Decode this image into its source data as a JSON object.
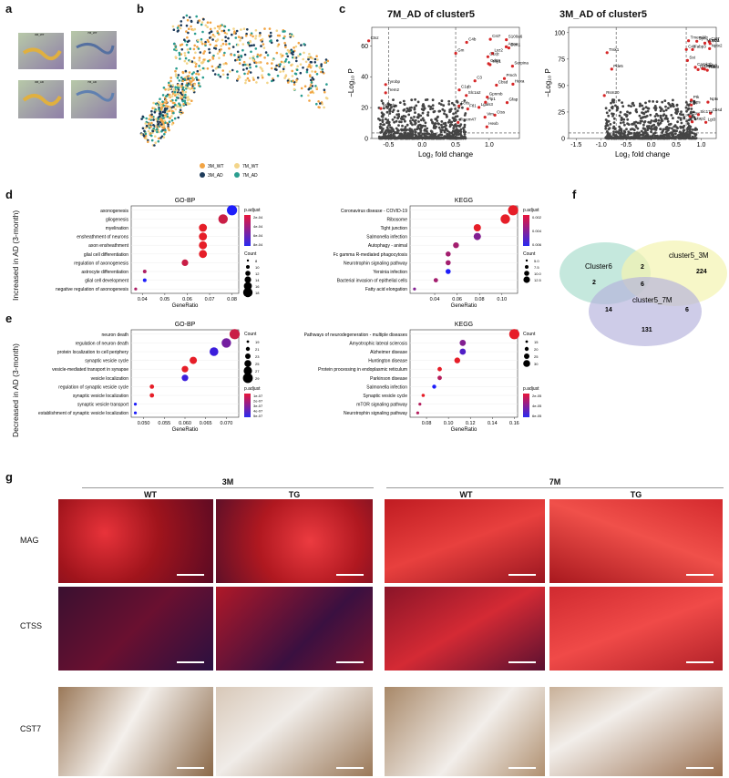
{
  "panel_labels": [
    "a",
    "b",
    "c",
    "d",
    "e",
    "f",
    "g"
  ],
  "panel_a": {
    "tiles": [
      "3M_WT",
      "7M_WT",
      "3M_AD",
      "7M_AD"
    ]
  },
  "panel_b": {
    "legend": [
      {
        "label": "3M_WT",
        "color": "#f2a444"
      },
      {
        "label": "3M_AD",
        "color": "#1d3b5a"
      },
      {
        "label": "7M_WT",
        "color": "#f3d58a"
      },
      {
        "label": "7M_AD",
        "color": "#2a9d8f"
      }
    ]
  },
  "panel_c": {
    "left_title": "7M_AD of cluster5",
    "right_title": "3M_AD of cluster5",
    "xlabel": "Log₂ fold change",
    "ylabel": "−Log₁₀ P",
    "left_xticks": [
      "-0.5",
      "0.0",
      "0.5",
      "1.0"
    ],
    "left_yticks": [
      "0",
      "20",
      "40",
      "60"
    ],
    "right_xticks": [
      "-1.5",
      "-1.0",
      "-0.5",
      "0.0",
      "0.5",
      "1.0"
    ],
    "right_yticks": [
      "0",
      "25",
      "50",
      "75",
      "100"
    ],
    "left_genes": [
      "Cbsd",
      "Apoe",
      "Cst7",
      "Thy1",
      "Ftl1",
      "C4b",
      "Tyrobp",
      "Lyz2",
      "Serpina3n",
      "Ctss",
      "Vim",
      "C3",
      "Hexb",
      "Trem2",
      "C1qc",
      "C1qb",
      "S100a6",
      "Gm",
      "Cd68",
      "Fcrls",
      "Ctsz",
      "Lgals3",
      "Hexa",
      "Pmch",
      "Gfap",
      "Tmem47",
      "Sort1",
      "Map1b",
      "Plp1",
      "Gpnmb",
      "Slc1a2"
    ],
    "right_genes": [
      "Cbsd",
      "Ctss",
      "C4b",
      "Fabp3",
      "Bcl",
      "Rps",
      "Rsm20",
      "Lgi3",
      "Nptx",
      "Hba",
      "Camk2b",
      "Ptk",
      "Cst7",
      "Trsk1",
      "Magi",
      "Sst",
      "Nptx2",
      "Camk3",
      "Rab3",
      "Slc17a",
      "Pde5",
      "Syn7",
      "Mbp83",
      "Tmem80",
      "Akap2"
    ]
  },
  "sidebars": {
    "d": "Increased in AD (3-month)",
    "e": "Decreased in AD (3-month)"
  },
  "chart_data": [
    {
      "type": "scatter",
      "title": "GO-BP",
      "xlabel": "GeneRatio",
      "panel": "d",
      "categories": [
        "axonogenesis",
        "gliogenesis",
        "myelination",
        "ensheathment of neurons",
        "axon ensheathment",
        "glial cell differentiation",
        "regulation of axonogenesis",
        "astrocyte differentiation",
        "glial cell development",
        "negative regulation of axonogenesis"
      ],
      "x": [
        0.08,
        0.076,
        0.067,
        0.067,
        0.067,
        0.067,
        0.059,
        0.041,
        0.041,
        0.037
      ],
      "count": [
        18,
        17,
        15,
        15,
        15,
        15,
        13,
        9,
        9,
        8
      ],
      "p_adjust": [
        0.0008,
        0.0002,
        0.0001,
        0.0001,
        0.0001,
        0.0001,
        0.0002,
        0.0003,
        0.0008,
        0.0003
      ],
      "xticks": [
        "0.04",
        "0.05",
        "0.06",
        "0.07",
        "0.08"
      ],
      "xlim": [
        0.035,
        0.083
      ],
      "size_legend": {
        "title": "Count",
        "values": [
          "8",
          "10",
          "12",
          "14",
          "16",
          "18"
        ]
      },
      "color_legend": {
        "title": "p.adjust",
        "values": [
          "2e-04",
          "4e-04",
          "6e-04",
          "8e-04"
        ]
      }
    },
    {
      "type": "scatter",
      "title": "KEGG",
      "xlabel": "GeneRatio",
      "panel": "d",
      "categories": [
        "Coronavirus disease - COVID-19",
        "Ribosome",
        "Tight junction",
        "Salmonella infection",
        "Autophagy - animal",
        "Fc gamma R-mediated phagocytosis",
        "Neurotrophin signaling pathway",
        "Yersinia infection",
        "Bacterial invasion of epithelial cells",
        "Fatty acid elongation"
      ],
      "x": [
        0.11,
        0.103,
        0.078,
        0.078,
        0.059,
        0.052,
        0.052,
        0.052,
        0.041,
        0.022
      ],
      "count": [
        13,
        12,
        9,
        9,
        7,
        6,
        6,
        6,
        5,
        3
      ],
      "p_adjust": [
        0.001,
        0.001,
        0.001,
        0.004,
        0.003,
        0.003,
        0.003,
        0.007,
        0.003,
        0.004
      ],
      "xticks": [
        "0.04",
        "0.06",
        "0.08",
        "0.10"
      ],
      "xlim": [
        0.018,
        0.114
      ],
      "size_legend": {
        "title": "Count",
        "values": [
          "5.0",
          "7.5",
          "10.0",
          "12.5"
        ]
      },
      "color_legend": {
        "title": "p.adjust",
        "values": [
          "0.002",
          "0.004",
          "0.006"
        ]
      }
    },
    {
      "type": "scatter",
      "title": "GO-BP",
      "xlabel": "GeneRatio",
      "panel": "e",
      "categories": [
        "neuron death",
        "regulation of neuron death",
        "protein localization to cell periphery",
        "synaptic vesicle cycle",
        "vesicle-mediated transport in synapse",
        "vesicle localization",
        "regulation of synaptic vesicle cycle",
        "synaptic vesicle localization",
        "synaptic vesicle transport",
        "establishment of synaptic vesicle localization"
      ],
      "x": [
        0.072,
        0.07,
        0.067,
        0.062,
        0.06,
        0.06,
        0.052,
        0.052,
        0.048,
        0.048
      ],
      "count": [
        29,
        28,
        27,
        25,
        24,
        24,
        21,
        21,
        19,
        19
      ],
      "p_adjust": [
        2e-07,
        5e-07,
        7e-07,
        1e-07,
        1e-07,
        7e-07,
        1e-07,
        1e-07,
        8e-07,
        8e-07
      ],
      "xticks": [
        "0.050",
        "0.055",
        "0.060",
        "0.065",
        "0.070"
      ],
      "xlim": [
        0.047,
        0.073
      ],
      "size_legend": {
        "title": "Count",
        "values": [
          "19",
          "21",
          "23",
          "25",
          "27",
          "29"
        ]
      },
      "color_legend": {
        "title": "p.adjust",
        "values": [
          "1e-07",
          "2e-07",
          "3e-07",
          "4e-07",
          "5e-07"
        ]
      }
    },
    {
      "type": "scatter",
      "title": "KEGG",
      "xlabel": "GeneRatio",
      "panel": "e",
      "categories": [
        "Pathways of neurodegeneration - multiple diseases",
        "Amyotrophic lateral sclerosis",
        "Alzheimer disease",
        "Huntington disease",
        "Protein processing in endoplasmic reticulum",
        "Parkinson disease",
        "Salmonella infection",
        "Synaptic vesicle cycle",
        "mTOR signaling pathway",
        "Neurotrophin signaling pathway"
      ],
      "x": [
        0.16,
        0.113,
        0.113,
        0.108,
        0.092,
        0.092,
        0.087,
        0.077,
        0.074,
        0.072
      ],
      "count": [
        35,
        24,
        24,
        23,
        19,
        19,
        18,
        16,
        15,
        15
      ],
      "p_adjust": [
        1e-05,
        3e-05,
        4e-05,
        1e-05,
        1e-05,
        2e-05,
        5e-05,
        1e-05,
        2e-05,
        2e-05
      ],
      "xticks": [
        "0.08",
        "0.10",
        "0.12",
        "0.14",
        "0.16"
      ],
      "xlim": [
        0.065,
        0.163
      ],
      "size_legend": {
        "title": "Count",
        "values": [
          "15",
          "20",
          "25",
          "30"
        ]
      },
      "color_legend": {
        "title": "p.adjust",
        "values": [
          "2e-05",
          "4e-05",
          "6e-05"
        ]
      }
    }
  ],
  "venn": {
    "sets": [
      "Cluster6",
      "cluster5_3M",
      "cluster5_7M"
    ],
    "numbers": {
      "a_only": "2",
      "b_only": "224",
      "c_only": "131",
      "ab": "2",
      "ac": "14",
      "bc": "6",
      "abc": "6"
    }
  },
  "panel_g": {
    "groups": [
      "3M",
      "7M"
    ],
    "cols": [
      "WT",
      "TG",
      "WT",
      "TG"
    ],
    "rows": [
      "MAG",
      "CTSS",
      "CST7"
    ]
  }
}
